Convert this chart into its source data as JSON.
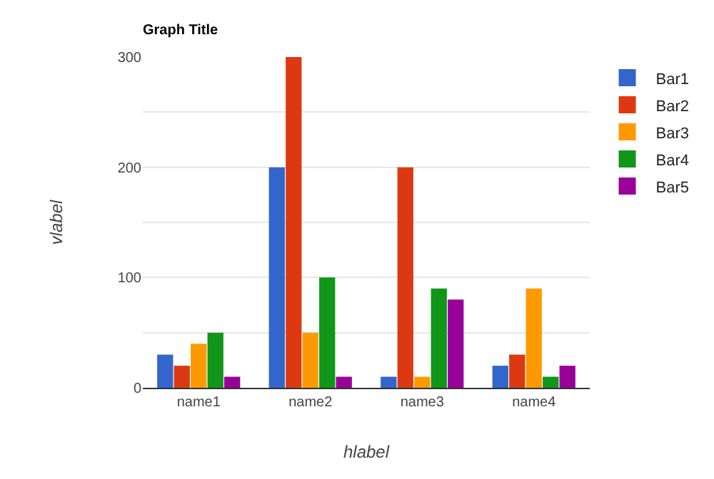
{
  "chart_data": {
    "type": "bar",
    "title": "Graph Title",
    "xlabel": "hlabel",
    "ylabel": "vlabel",
    "categories": [
      "name1",
      "name2",
      "name3",
      "name4"
    ],
    "series": [
      {
        "name": "Bar1",
        "color": "#3366cc",
        "values": [
          30,
          200,
          10,
          20
        ]
      },
      {
        "name": "Bar2",
        "color": "#dc3912",
        "values": [
          20,
          300,
          200,
          30
        ]
      },
      {
        "name": "Bar3",
        "color": "#ff9900",
        "values": [
          40,
          50,
          10,
          90
        ]
      },
      {
        "name": "Bar4",
        "color": "#109618",
        "values": [
          50,
          100,
          90,
          10
        ]
      },
      {
        "name": "Bar5",
        "color": "#990099",
        "values": [
          10,
          10,
          80,
          20
        ]
      }
    ],
    "ylim": [
      0,
      300
    ],
    "yticks": [
      0,
      {
        "value": 50,
        "label": null
      },
      100,
      {
        "value": 150,
        "label": null
      },
      200,
      {
        "value": 250,
        "label": null
      },
      300
    ],
    "grid": "y",
    "legend": "top right"
  }
}
